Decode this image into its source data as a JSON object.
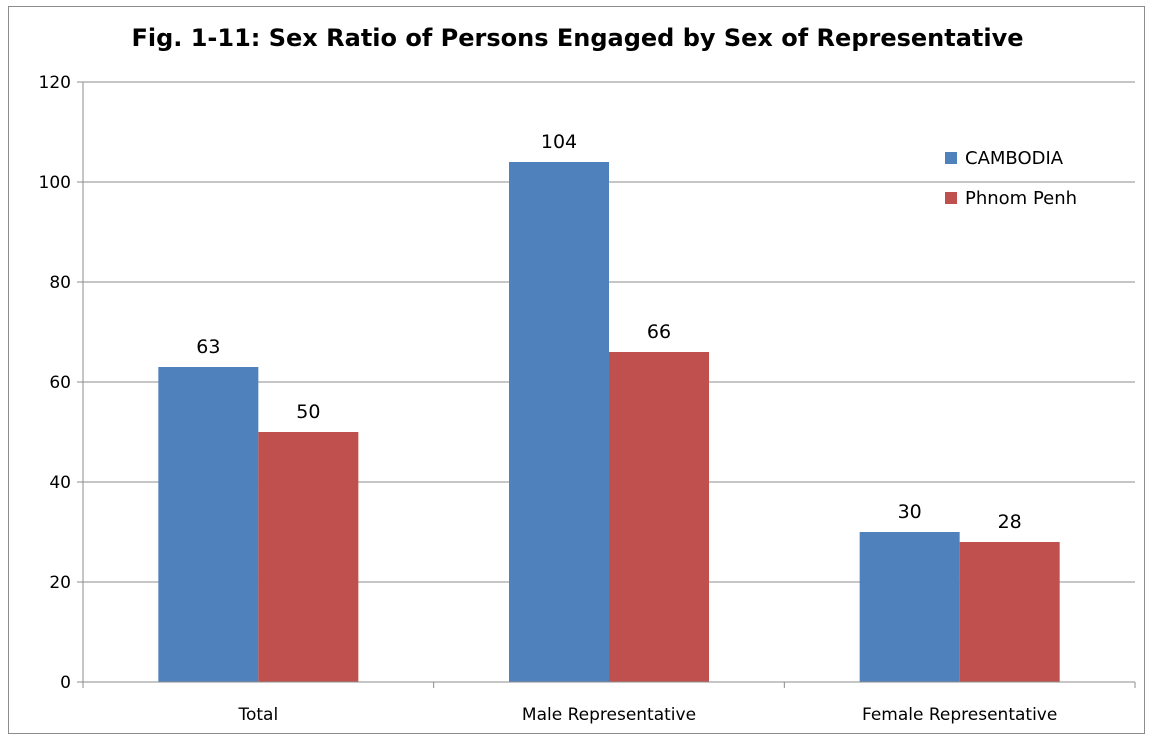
{
  "chart_data": {
    "type": "bar",
    "title": "Fig. 1-11: Sex Ratio of Persons Engaged by Sex of Representative",
    "xlabel": "",
    "ylabel": "",
    "categories": [
      "Total",
      "Male Representative",
      "Female Representative"
    ],
    "series": [
      {
        "name": "CAMBODIA",
        "values": [
          63,
          104,
          30
        ],
        "color": "#4f81bd"
      },
      {
        "name": "Phnom Penh",
        "values": [
          50,
          66,
          28
        ],
        "color": "#c0504d"
      }
    ],
    "ylim": [
      0,
      120
    ],
    "yticks": [
      0,
      20,
      40,
      60,
      80,
      100,
      120
    ],
    "grid": true,
    "legend": "top-right"
  }
}
